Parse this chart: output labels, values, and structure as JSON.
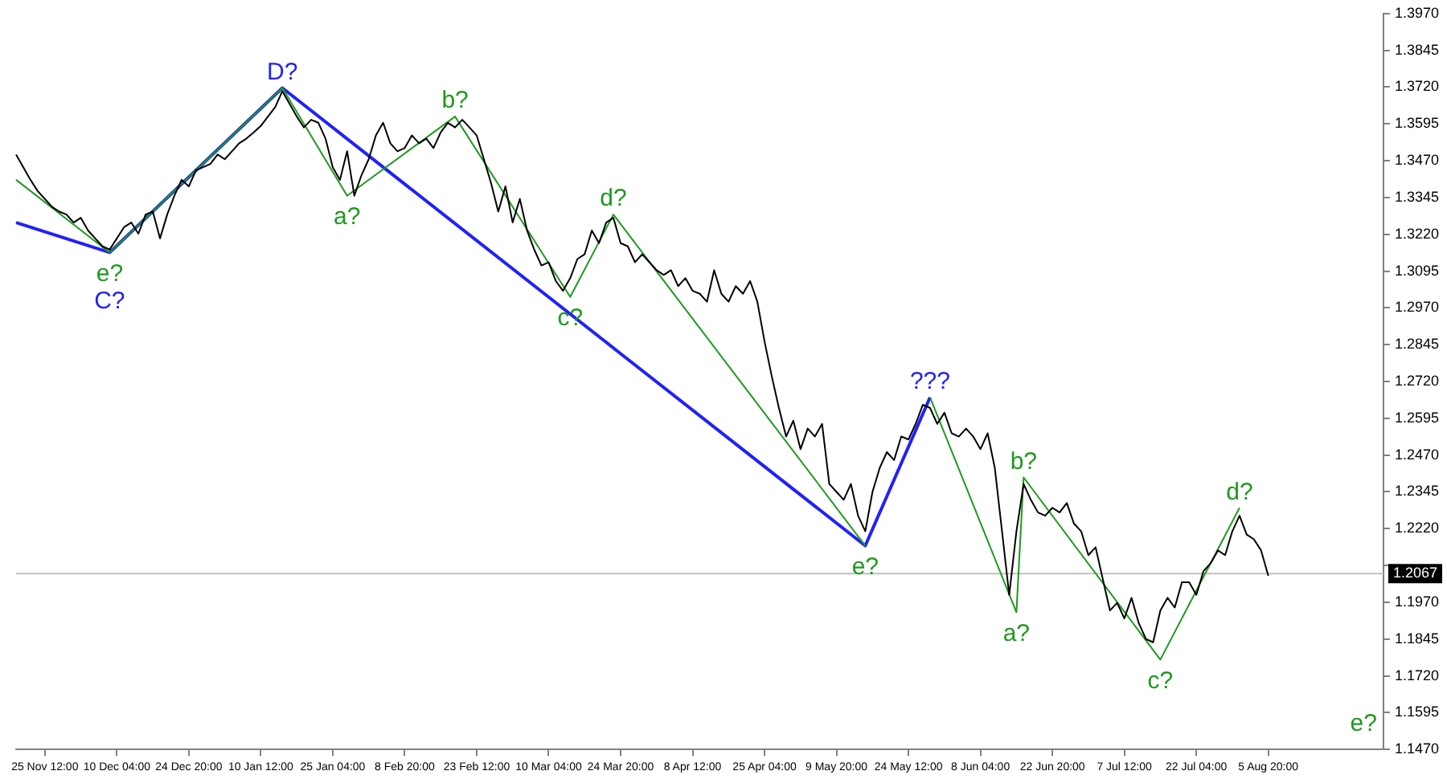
{
  "chart_data": {
    "type": "line",
    "categories": [
      null,
      null,
      null,
      null,
      "25 Nov 12:00",
      null,
      null,
      null,
      null,
      null,
      null,
      null,
      null,
      null,
      "10 Dec 04:00",
      null,
      null,
      null,
      null,
      null,
      null,
      null,
      null,
      null,
      "24 Dec 20:00",
      null,
      null,
      null,
      null,
      null,
      null,
      null,
      null,
      null,
      "10 Jan 12:00",
      null,
      null,
      null,
      null,
      null,
      null,
      null,
      null,
      null,
      "25 Jan 04:00",
      null,
      null,
      null,
      null,
      null,
      null,
      null,
      null,
      null,
      "8 Feb 20:00",
      null,
      null,
      null,
      null,
      null,
      null,
      null,
      null,
      null,
      "23 Feb 12:00",
      null,
      null,
      null,
      null,
      null,
      null,
      null,
      null,
      null,
      "10 Mar 04:00",
      null,
      null,
      null,
      null,
      null,
      null,
      null,
      null,
      null,
      "24 Mar 20:00",
      null,
      null,
      null,
      null,
      null,
      null,
      null,
      null,
      null,
      "8 Apr 12:00",
      null,
      null,
      null,
      null,
      null,
      null,
      null,
      null,
      null,
      "25 Apr 04:00",
      null,
      null,
      null,
      null,
      null,
      null,
      null,
      null,
      null,
      "9 May 20:00",
      null,
      null,
      null,
      null,
      null,
      null,
      null,
      null,
      null,
      "24 May 12:00",
      null,
      null,
      null,
      null,
      null,
      null,
      null,
      null,
      null,
      "8 Jun 04:00",
      null,
      null,
      null,
      null,
      null,
      null,
      null,
      null,
      null,
      "22 Jun 20:00",
      null,
      null,
      null,
      null,
      null,
      null,
      null,
      null,
      null,
      "7 Jul 12:00",
      null,
      null,
      null,
      null,
      null,
      null,
      null,
      null,
      null,
      "22 Jul 04:00",
      null,
      null,
      null,
      null,
      null,
      null,
      null,
      null,
      null,
      "5 Aug 20:00",
      null,
      null,
      null,
      null,
      null,
      null,
      null,
      null,
      null,
      null,
      null,
      null,
      null,
      null,
      null,
      null
    ],
    "series": [
      {
        "color": "#000000",
        "values": [
          1.3491,
          1.3448,
          1.3405,
          1.3367,
          1.334,
          1.3313,
          1.3297,
          1.3287,
          1.326,
          1.3276,
          1.3233,
          1.3206,
          1.3179,
          1.3168,
          1.3206,
          1.3244,
          1.326,
          1.3222,
          1.3287,
          1.3297,
          1.3206,
          1.3287,
          1.3351,
          1.3405,
          1.3383,
          1.3437,
          1.3448,
          1.3459,
          1.3491,
          1.3475,
          1.3502,
          1.3529,
          1.3545,
          1.3566,
          1.3588,
          1.362,
          1.3652,
          1.3706,
          1.3663,
          1.362,
          1.3583,
          1.3609,
          1.3599,
          1.3545,
          1.3448,
          1.3405,
          1.3502,
          1.3351,
          1.3421,
          1.3475,
          1.3556,
          1.3599,
          1.3529,
          1.3502,
          1.3513,
          1.3556,
          1.3529,
          1.3545,
          1.3513,
          1.3566,
          1.3599,
          1.3583,
          1.3609,
          1.3583,
          1.3556,
          1.3475,
          1.3394,
          1.3297,
          1.3383,
          1.326,
          1.334,
          1.3233,
          1.3168,
          1.3114,
          1.3125,
          1.3061,
          1.3028,
          1.3071,
          1.3136,
          1.3152,
          1.3233,
          1.319,
          1.326,
          1.3276,
          1.319,
          1.3179,
          1.3125,
          1.3152,
          1.3125,
          1.3098,
          1.3082,
          1.3098,
          1.3044,
          1.3071,
          1.3028,
          1.3018,
          1.2991,
          1.3098,
          1.3018,
          1.2991,
          1.3044,
          1.3018,
          1.3061,
          1.2991,
          1.2856,
          1.2738,
          1.263,
          1.2533,
          1.2587,
          1.249,
          1.256,
          1.2533,
          1.2576,
          1.2372,
          1.2345,
          1.2318,
          1.2372,
          1.2264,
          1.2211,
          1.2345,
          1.2426,
          1.248,
          1.2453,
          1.2533,
          1.2523,
          1.2576,
          1.2641,
          1.263,
          1.2576,
          1.2614,
          1.2544,
          1.2533,
          1.256,
          1.2533,
          1.249,
          1.2544,
          1.2426,
          1.2211,
          1.1995,
          1.2211,
          1.2372,
          1.2318,
          1.2275,
          1.2264,
          1.2291,
          1.2275,
          1.2307,
          1.2237,
          1.2211,
          1.213,
          1.2157,
          1.2049,
          1.1942,
          1.1968,
          1.1915,
          1.1985,
          1.1899,
          1.1845,
          1.1834,
          1.1942,
          1.1985,
          1.1952,
          1.2038,
          1.2038,
          1.1995,
          1.2076,
          1.2103,
          1.2146,
          1.213,
          1.2211,
          1.2264,
          1.22,
          1.2184,
          1.2146,
          1.206,
          null,
          null,
          null,
          null,
          null,
          null,
          null,
          null,
          null,
          null,
          null,
          null,
          null,
          null,
          null,
          null
        ]
      },
      {
        "color": "#1e9a1e",
        "values": [
          1.3405,
          null,
          null,
          null,
          null,
          null,
          null,
          null,
          null,
          null,
          null,
          null,
          null,
          1.3158,
          null,
          null,
          null,
          null,
          null,
          null,
          null,
          null,
          null,
          null,
          null,
          null,
          null,
          null,
          null,
          null,
          null,
          null,
          null,
          null,
          null,
          null,
          null,
          1.3717,
          null,
          null,
          null,
          null,
          null,
          null,
          null,
          null,
          1.3351,
          null,
          null,
          null,
          null,
          null,
          null,
          null,
          null,
          null,
          null,
          null,
          null,
          null,
          null,
          1.362,
          null,
          null,
          null,
          null,
          null,
          null,
          null,
          null,
          null,
          null,
          null,
          null,
          null,
          null,
          null,
          1.3007,
          null,
          null,
          null,
          null,
          null,
          1.3287,
          null,
          null,
          null,
          null,
          null,
          null,
          null,
          null,
          null,
          null,
          null,
          null,
          null,
          null,
          null,
          null,
          null,
          null,
          null,
          null,
          null,
          null,
          null,
          null,
          null,
          null,
          null,
          null,
          null,
          null,
          null,
          null,
          null,
          null,
          1.2162,
          null,
          null,
          null,
          null,
          null,
          null,
          null,
          null,
          null,
          null,
          null,
          null,
          null,
          null,
          null,
          null,
          null,
          null,
          null,
          null,
          null,
          null,
          null,
          null,
          null,
          null,
          null,
          null,
          null,
          null,
          null,
          null,
          null,
          null,
          null,
          null,
          null,
          null,
          null,
          null,
          null,
          null,
          null,
          null,
          null,
          null,
          null,
          null,
          null,
          null,
          null,
          null,
          null,
          null,
          null,
          null,
          null,
          null,
          null,
          null,
          null,
          null,
          null,
          null,
          null,
          null,
          null,
          null,
          null,
          null,
          null,
          null
        ],
        "value_labels": [
          null,
          null,
          null,
          null,
          null,
          null,
          null,
          null,
          null,
          null,
          null,
          null,
          null,
          "e?",
          null,
          null,
          null,
          null,
          null,
          null,
          null,
          null,
          null,
          null,
          null,
          null,
          null,
          null,
          null,
          null,
          null,
          null,
          null,
          null,
          null,
          null,
          null,
          null,
          null,
          null,
          null,
          null,
          null,
          null,
          null,
          null,
          "a?",
          null,
          null,
          null,
          null,
          null,
          null,
          null,
          null,
          null,
          null,
          null,
          null,
          null,
          null,
          "b?",
          null,
          null,
          null,
          null,
          null,
          null,
          null,
          null,
          null,
          null,
          null,
          null,
          null,
          null,
          null,
          "c?",
          null,
          null,
          null,
          null,
          null,
          "d?",
          null,
          null,
          null,
          null,
          null,
          null,
          null,
          null,
          null,
          null,
          null,
          null,
          null,
          null,
          null,
          null,
          null,
          null,
          null,
          null,
          null,
          null,
          null,
          null,
          null,
          null,
          null,
          null,
          null,
          null,
          null,
          null,
          null,
          null,
          "e?",
          null,
          null,
          null,
          null,
          null,
          null,
          null,
          null,
          null,
          null,
          null,
          null,
          null,
          null,
          null,
          null,
          null,
          null,
          null,
          null,
          null,
          null,
          null,
          null,
          null,
          null,
          null,
          null,
          null,
          null,
          null,
          null,
          null,
          null,
          null,
          null,
          null,
          null,
          null,
          null,
          null,
          null,
          null,
          null,
          null,
          null,
          null,
          null,
          null,
          null,
          null,
          null,
          null,
          null,
          null,
          null,
          null,
          null,
          null,
          null,
          null,
          null,
          null,
          null,
          null,
          null,
          null,
          null,
          null,
          null,
          null,
          null
        ]
      },
      {
        "color": "#1e9a1e",
        "values": [
          null,
          null,
          null,
          null,
          null,
          null,
          null,
          null,
          null,
          null,
          null,
          null,
          null,
          null,
          null,
          null,
          null,
          null,
          null,
          null,
          null,
          null,
          null,
          null,
          null,
          null,
          null,
          null,
          null,
          null,
          null,
          null,
          null,
          null,
          null,
          null,
          null,
          null,
          null,
          null,
          null,
          null,
          null,
          null,
          null,
          null,
          null,
          null,
          null,
          null,
          null,
          null,
          null,
          null,
          null,
          null,
          null,
          null,
          null,
          null,
          null,
          null,
          null,
          null,
          null,
          null,
          null,
          null,
          null,
          null,
          null,
          null,
          null,
          null,
          null,
          null,
          null,
          null,
          null,
          null,
          null,
          null,
          null,
          null,
          null,
          null,
          null,
          null,
          null,
          null,
          null,
          null,
          null,
          null,
          null,
          null,
          null,
          null,
          null,
          null,
          null,
          null,
          null,
          null,
          null,
          null,
          null,
          null,
          null,
          null,
          null,
          null,
          null,
          null,
          null,
          null,
          null,
          null,
          null,
          null,
          null,
          null,
          null,
          null,
          null,
          null,
          null,
          1.2666,
          null,
          null,
          null,
          null,
          null,
          null,
          null,
          null,
          null,
          null,
          null,
          1.1936,
          1.2394,
          null,
          null,
          null,
          null,
          null,
          null,
          null,
          null,
          null,
          null,
          null,
          null,
          null,
          null,
          null,
          null,
          null,
          null,
          1.1775,
          null,
          null,
          null,
          null,
          null,
          null,
          null,
          null,
          null,
          null,
          1.2291,
          null,
          null,
          null,
          null,
          null,
          null,
          null,
          null,
          null,
          null,
          null,
          null,
          null,
          null,
          null,
          null,
          null,
          null,
          null,
          null
        ],
        "value_labels": [
          null,
          null,
          null,
          null,
          null,
          null,
          null,
          null,
          null,
          null,
          null,
          null,
          null,
          null,
          null,
          null,
          null,
          null,
          null,
          null,
          null,
          null,
          null,
          null,
          null,
          null,
          null,
          null,
          null,
          null,
          null,
          null,
          null,
          null,
          null,
          null,
          null,
          null,
          null,
          null,
          null,
          null,
          null,
          null,
          null,
          null,
          null,
          null,
          null,
          null,
          null,
          null,
          null,
          null,
          null,
          null,
          null,
          null,
          null,
          null,
          null,
          null,
          null,
          null,
          null,
          null,
          null,
          null,
          null,
          null,
          null,
          null,
          null,
          null,
          null,
          null,
          null,
          null,
          null,
          null,
          null,
          null,
          null,
          null,
          null,
          null,
          null,
          null,
          null,
          null,
          null,
          null,
          null,
          null,
          null,
          null,
          null,
          null,
          null,
          null,
          null,
          null,
          null,
          null,
          null,
          null,
          null,
          null,
          null,
          null,
          null,
          null,
          null,
          null,
          null,
          null,
          null,
          null,
          null,
          null,
          null,
          null,
          null,
          null,
          null,
          null,
          null,
          null,
          null,
          null,
          null,
          null,
          null,
          null,
          null,
          null,
          null,
          null,
          null,
          "a?",
          "b?",
          null,
          null,
          null,
          null,
          null,
          null,
          null,
          null,
          null,
          null,
          null,
          null,
          null,
          null,
          null,
          null,
          null,
          null,
          "c?",
          null,
          null,
          null,
          null,
          null,
          null,
          null,
          null,
          null,
          null,
          "d?",
          null,
          null,
          null,
          null,
          null,
          null,
          null,
          null,
          null,
          null,
          null,
          null,
          null,
          null,
          null,
          null,
          null,
          null,
          null,
          null
        ]
      },
      {
        "color": "#2020ff",
        "values": [
          1.326,
          null,
          null,
          null,
          null,
          null,
          null,
          null,
          null,
          null,
          null,
          null,
          null,
          1.3158,
          null,
          null,
          null,
          null,
          null,
          null,
          null,
          null,
          null,
          null,
          null,
          null,
          null,
          null,
          null,
          null,
          null,
          null,
          null,
          null,
          null,
          null,
          null,
          1.3717,
          null,
          null,
          null,
          null,
          null,
          null,
          null,
          null,
          null,
          null,
          null,
          null,
          null,
          null,
          null,
          null,
          null,
          null,
          null,
          null,
          null,
          null,
          null,
          null,
          null,
          null,
          null,
          null,
          null,
          null,
          null,
          null,
          null,
          null,
          null,
          null,
          null,
          null,
          null,
          null,
          null,
          null,
          null,
          null,
          null,
          null,
          null,
          null,
          null,
          null,
          null,
          null,
          null,
          null,
          null,
          null,
          null,
          null,
          null,
          null,
          null,
          null,
          null,
          null,
          null,
          null,
          null,
          null,
          null,
          null,
          null,
          null,
          null,
          null,
          null,
          null,
          null,
          null,
          null,
          null,
          1.2162,
          null,
          null,
          null,
          null,
          null,
          null,
          null,
          null,
          1.2666,
          null,
          null,
          null,
          null,
          null,
          null,
          null,
          null,
          null,
          null,
          null,
          null,
          null,
          null,
          null,
          null,
          null,
          null,
          null,
          null,
          null,
          null,
          null,
          null,
          null,
          null,
          null,
          null,
          null,
          null,
          null,
          null,
          null,
          null,
          null,
          null,
          null,
          null,
          null,
          null,
          null,
          null,
          null,
          null,
          null,
          null,
          null,
          null,
          null,
          null,
          null,
          null,
          null,
          null,
          null,
          null,
          null,
          null,
          null,
          null,
          null,
          null,
          null
        ],
        "value_labels": [
          null,
          null,
          null,
          null,
          null,
          null,
          null,
          null,
          null,
          null,
          null,
          null,
          null,
          "C?",
          null,
          null,
          null,
          null,
          null,
          null,
          null,
          null,
          null,
          null,
          null,
          null,
          null,
          null,
          null,
          null,
          null,
          null,
          null,
          null,
          null,
          null,
          null,
          "D?",
          null,
          null,
          null,
          null,
          null,
          null,
          null,
          null,
          null,
          null,
          null,
          null,
          null,
          null,
          null,
          null,
          null,
          null,
          null,
          null,
          null,
          null,
          null,
          null,
          null,
          null,
          null,
          null,
          null,
          null,
          null,
          null,
          null,
          null,
          null,
          null,
          null,
          null,
          null,
          null,
          null,
          null,
          null,
          null,
          null,
          null,
          null,
          null,
          null,
          null,
          null,
          null,
          null,
          null,
          null,
          null,
          null,
          null,
          null,
          null,
          null,
          null,
          null,
          null,
          null,
          null,
          null,
          null,
          null,
          null,
          null,
          null,
          null,
          null,
          null,
          null,
          null,
          null,
          null,
          null,
          null,
          null,
          null,
          null,
          null,
          null,
          null,
          null,
          null,
          "???",
          null,
          null,
          null,
          null,
          null,
          null,
          null,
          null,
          null,
          null,
          null,
          null,
          null,
          null,
          null,
          null,
          null,
          null,
          null,
          null,
          null,
          null,
          null,
          null,
          null,
          null,
          null,
          null,
          null,
          null,
          null,
          null,
          null,
          null,
          null,
          null,
          null,
          null,
          null,
          null,
          null,
          null,
          null,
          null,
          null,
          null,
          null,
          null,
          null,
          null,
          null,
          null,
          null,
          null,
          null,
          null,
          null,
          null,
          null,
          null,
          null,
          null,
          null
        ]
      }
    ],
    "ylim": [
      1.147,
      1.397
    ],
    "yticks": [
      {
        "value": 1.397,
        "label": "1.3970"
      },
      1.3845,
      {
        "value": 1.372,
        "label": "1.3720"
      },
      1.3595,
      {
        "value": 1.347,
        "label": "1.3470"
      },
      1.3345,
      {
        "value": 1.322,
        "label": "1.3220"
      },
      1.3095,
      {
        "value": 1.297,
        "label": "1.2970"
      },
      1.2845,
      {
        "value": 1.272,
        "label": "1.2720"
      },
      1.2595,
      {
        "value": 1.247,
        "label": "1.2470"
      },
      1.2345,
      {
        "value": 1.222,
        "label": "1.2220"
      },
      {
        "value": 1.2095,
        "label": null
      },
      {
        "value": 1.197,
        "label": "1.1970"
      },
      1.1845,
      {
        "value": 1.172,
        "label": "1.1720"
      },
      1.1595,
      {
        "value": 1.147,
        "label": "1.1470"
      }
    ],
    "ref_lines": [
      {
        "axis": "y",
        "value": 1.2067,
        "label": "1.2067",
        "color": "#c0c0c0"
      }
    ],
    "annotations": [
      "e?"
    ],
    "grid": false,
    "legend": false,
    "marker": "none",
    "line_style": "solid"
  }
}
